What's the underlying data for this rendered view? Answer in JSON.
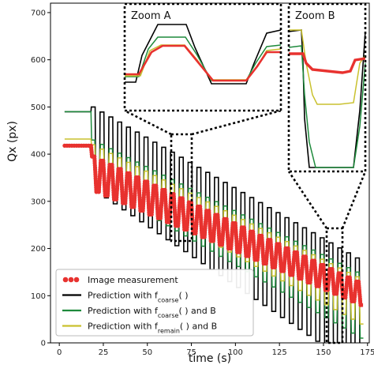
{
  "chart_data": {
    "type": "line",
    "xlabel": "time (s)",
    "ylabel": "Qx (px)",
    "xlim": [
      -5,
      176
    ],
    "ylim": [
      0,
      720
    ],
    "xticks": [
      0,
      25,
      50,
      75,
      100,
      125,
      150,
      175
    ],
    "yticks": [
      0,
      100,
      200,
      300,
      400,
      500,
      600,
      700
    ],
    "grid": false,
    "legend_position": "lower-left",
    "zoom_labels": [
      "Zoom A",
      "Zoom B"
    ],
    "series": [
      {
        "name": "Image measurement",
        "color": "#e8322f",
        "legend_label": {
          "base": "Image measurement",
          "sub": "",
          "tail": ""
        }
      },
      {
        "name": "Prediction with f_coarse( )",
        "color": "#000000",
        "legend_label": {
          "base": "Prediction with f",
          "sub": "coarse",
          "tail": "( )"
        }
      },
      {
        "name": "Prediction with f_coarse( ) and B",
        "color": "#1e8a3c",
        "legend_label": {
          "base": "Prediction with f",
          "sub": "coarse",
          "tail": "( ) and B"
        }
      },
      {
        "name": "Prediction with f_remain( ) and B",
        "color": "#c9c12e",
        "legend_label": {
          "base": "Prediction with f",
          "sub": "remain",
          "tail": "( ) and B"
        }
      }
    ],
    "signal": {
      "start_x": 3,
      "first_step_x": 18,
      "measurement_start": 418,
      "black_start": 490,
      "green_start": 490,
      "yellow_start": 432,
      "period_s": 5,
      "cycles": 31,
      "measurement_high_start": 395,
      "measurement_high_end": 130,
      "measurement_low_start": 320,
      "measurement_low_end": 80,
      "black_high_start": 500,
      "black_high_end": 180,
      "black_low_start": 320,
      "black_low_end": -60,
      "green_high_start": 430,
      "green_high_end": 150,
      "green_low_start": 335,
      "green_low_end": 10,
      "yellow_high_start": 420,
      "yellow_high_end": 140,
      "yellow_low_start": 345,
      "yellow_low_end": 40,
      "end_x": 170
    }
  }
}
